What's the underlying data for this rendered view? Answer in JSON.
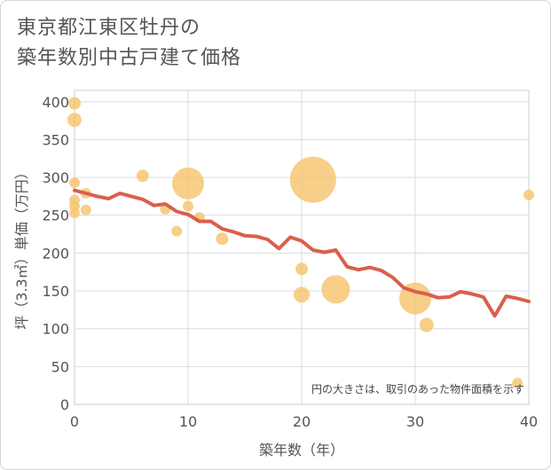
{
  "page": {
    "title_line1": "東京都江東区牡丹の",
    "title_line2": "築年数別中古戸建て価格"
  },
  "chart_data": {
    "type": "scatter",
    "title": "東京都江東区牡丹の築年数別中古戸建て価格",
    "xlabel": "築年数（年）",
    "ylabel": "坪（3.3㎡）単価（万円）",
    "xlim": [
      0,
      40
    ],
    "ylim": [
      0,
      415
    ],
    "xticks": [
      0,
      10,
      20,
      30,
      40
    ],
    "yticks": [
      0,
      50,
      100,
      150,
      200,
      250,
      300,
      350,
      400
    ],
    "grid": true,
    "annotation": "円の大きさは、取引のあった物件面積を示す",
    "colors": {
      "bubble": "#f5c56e",
      "line": "#d9604b"
    },
    "bubbles": [
      {
        "x": 0,
        "y": 398,
        "r": 7
      },
      {
        "x": 0,
        "y": 376,
        "r": 8
      },
      {
        "x": 0,
        "y": 293,
        "r": 6
      },
      {
        "x": 0,
        "y": 270,
        "r": 6
      },
      {
        "x": 0,
        "y": 262,
        "r": 6
      },
      {
        "x": 0,
        "y": 253,
        "r": 6
      },
      {
        "x": 1,
        "y": 279,
        "r": 6
      },
      {
        "x": 1,
        "y": 257,
        "r": 6
      },
      {
        "x": 6,
        "y": 302,
        "r": 7
      },
      {
        "x": 8,
        "y": 258,
        "r": 6
      },
      {
        "x": 9,
        "y": 229,
        "r": 6
      },
      {
        "x": 10,
        "y": 292,
        "r": 18
      },
      {
        "x": 10,
        "y": 262,
        "r": 6
      },
      {
        "x": 11,
        "y": 247,
        "r": 6
      },
      {
        "x": 13,
        "y": 219,
        "r": 7
      },
      {
        "x": 20,
        "y": 179,
        "r": 7
      },
      {
        "x": 20,
        "y": 145,
        "r": 9
      },
      {
        "x": 21,
        "y": 297,
        "r": 26
      },
      {
        "x": 23,
        "y": 152,
        "r": 16
      },
      {
        "x": 30,
        "y": 140,
        "r": 18
      },
      {
        "x": 31,
        "y": 105,
        "r": 8
      },
      {
        "x": 39,
        "y": 28,
        "r": 6
      },
      {
        "x": 40,
        "y": 277,
        "r": 6
      }
    ],
    "trend": {
      "x": [
        0,
        1,
        2,
        3,
        4,
        5,
        6,
        7,
        8,
        9,
        10,
        11,
        12,
        13,
        14,
        15,
        16,
        17,
        18,
        19,
        20,
        21,
        22,
        23,
        24,
        25,
        26,
        27,
        28,
        29,
        30,
        31,
        32,
        33,
        34,
        35,
        36,
        37,
        38,
        39,
        40
      ],
      "y": [
        283,
        279,
        275,
        272,
        279,
        275,
        271,
        263,
        265,
        255,
        251,
        242,
        242,
        232,
        228,
        223,
        222,
        218,
        206,
        221,
        216,
        204,
        201,
        204,
        182,
        178,
        181,
        177,
        168,
        154,
        149,
        146,
        141,
        142,
        149,
        146,
        142,
        117,
        143,
        140,
        136
      ]
    }
  }
}
